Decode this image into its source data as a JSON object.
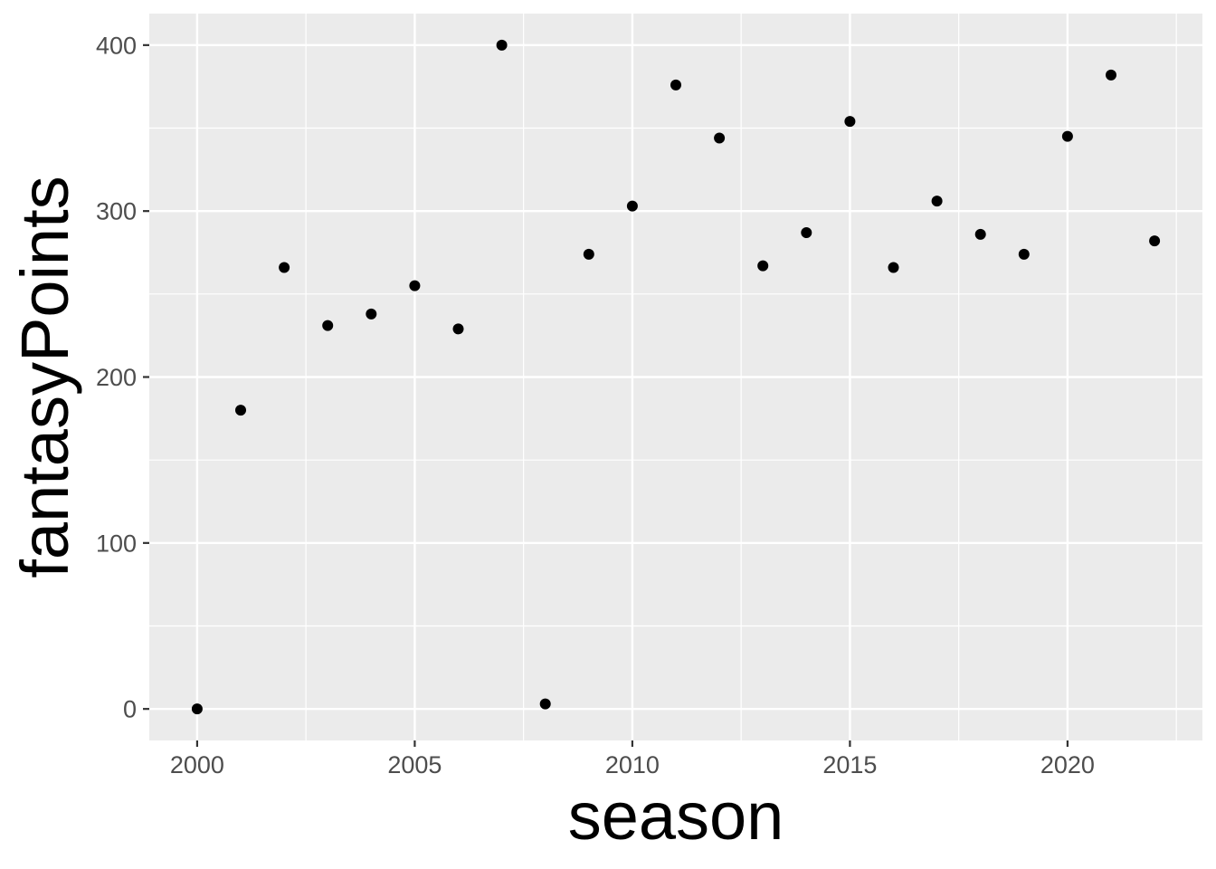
{
  "chart_data": {
    "type": "scatter",
    "title": "",
    "xlabel": "season",
    "ylabel": "fantasyPoints",
    "xlim": [
      1998.9,
      2023.1
    ],
    "ylim": [
      -19,
      419
    ],
    "x_ticks": [
      2000,
      2005,
      2010,
      2015,
      2020
    ],
    "y_ticks": [
      0,
      100,
      200,
      300,
      400
    ],
    "x_tick_labels": [
      "2000",
      "2005",
      "2010",
      "2015",
      "2020"
    ],
    "y_tick_labels": [
      "0",
      "100",
      "200",
      "300",
      "400"
    ],
    "grid": true,
    "legend": "none",
    "colors": {
      "panel": "#ebebeb",
      "grid": "#ffffff",
      "point": "#000000",
      "tick_text": "#4d4d4d",
      "tick_mark": "#333333"
    },
    "series": [
      {
        "x": [
          2000,
          2001,
          2002,
          2003,
          2004,
          2005,
          2006,
          2007,
          2008,
          2009,
          2010,
          2011,
          2012,
          2013,
          2014,
          2015,
          2016,
          2017,
          2018,
          2019,
          2020,
          2021,
          2022
        ],
        "y": [
          0,
          180,
          266,
          231,
          238,
          255,
          229,
          400,
          3,
          274,
          303,
          376,
          344,
          267,
          287,
          354,
          266,
          306,
          286,
          274,
          345,
          382,
          282
        ]
      }
    ]
  }
}
